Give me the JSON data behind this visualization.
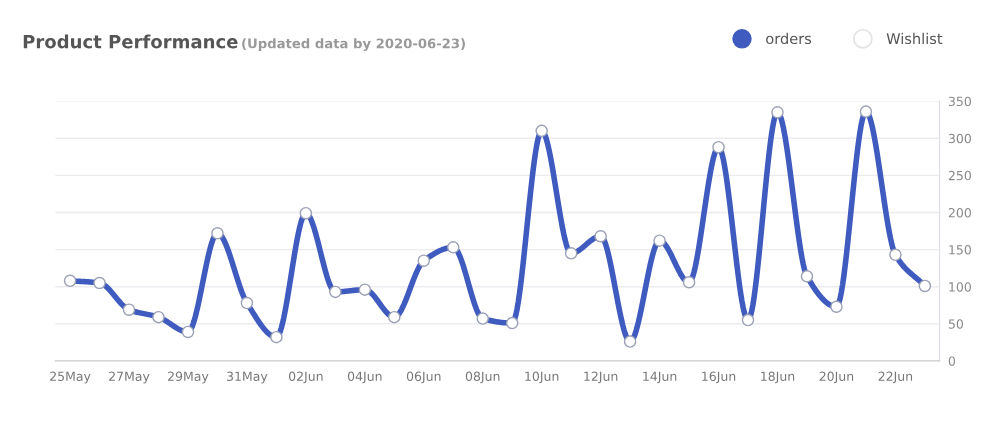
{
  "chart_data": {
    "type": "line",
    "title": "Product Performance",
    "subtitle": "(Updated data by 2020-06-23)",
    "x": [
      "2020-05-25",
      "2020-05-26",
      "2020-05-27",
      "2020-05-28",
      "2020-05-29",
      "2020-05-30",
      "2020-05-31",
      "2020-06-01",
      "2020-06-02",
      "2020-06-03",
      "2020-06-04",
      "2020-06-05",
      "2020-06-06",
      "2020-06-07",
      "2020-06-08",
      "2020-06-09",
      "2020-06-10",
      "2020-06-11",
      "2020-06-12",
      "2020-06-13",
      "2020-06-14",
      "2020-06-15",
      "2020-06-16",
      "2020-06-17",
      "2020-06-18",
      "2020-06-19",
      "2020-06-20",
      "2020-06-21",
      "2020-06-22",
      "2020-06-23"
    ],
    "series": [
      {
        "name": "orders",
        "color": "#3f5bbf",
        "values": [
          108,
          105,
          69,
          59,
          39,
          172,
          78,
          32,
          199,
          93,
          96,
          59,
          135,
          153,
          57,
          51,
          310,
          145,
          168,
          26,
          162,
          106,
          288,
          55,
          335,
          114,
          73,
          336,
          143,
          101
        ]
      },
      {
        "name": "Wishlist",
        "color": "#e3e3e3",
        "values": [
          null,
          null,
          null,
          null,
          null,
          null,
          null,
          null,
          null,
          null,
          null,
          null,
          null,
          null,
          null,
          null,
          null,
          null,
          null,
          null,
          null,
          null,
          null,
          null,
          null,
          null,
          null,
          null,
          null,
          null
        ]
      }
    ],
    "xlim": [
      "2020-05-24T12:00",
      "2020-06-23T12:00"
    ],
    "xticks": [
      {
        "value": "2020-05-25",
        "label": "25May"
      },
      {
        "value": "2020-05-27",
        "label": "27May"
      },
      {
        "value": "2020-05-29",
        "label": "29May"
      },
      {
        "value": "2020-05-31",
        "label": "31May"
      },
      {
        "value": "2020-06-02",
        "label": "02Jun"
      },
      {
        "value": "2020-06-04",
        "label": "04Jun"
      },
      {
        "value": "2020-06-06",
        "label": "06Jun"
      },
      {
        "value": "2020-06-08",
        "label": "08Jun"
      },
      {
        "value": "2020-06-10",
        "label": "10Jun"
      },
      {
        "value": "2020-06-12",
        "label": "12Jun"
      },
      {
        "value": "2020-06-14",
        "label": "14Jun"
      },
      {
        "value": "2020-06-16",
        "label": "16Jun"
      },
      {
        "value": "2020-06-18",
        "label": "18Jun"
      },
      {
        "value": "2020-06-20",
        "label": "20Jun"
      },
      {
        "value": "2020-06-22",
        "label": "22Jun"
      }
    ],
    "ylim": [
      0,
      350
    ],
    "yticks": [
      0,
      50,
      100,
      150,
      200,
      250,
      300,
      350
    ],
    "grid": "y",
    "legend": "top right",
    "marker": "circle",
    "line_style": "solid"
  }
}
